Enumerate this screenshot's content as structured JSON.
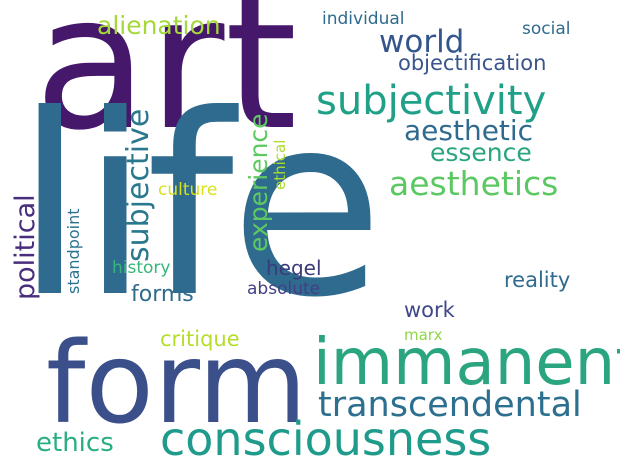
{
  "words": {
    "art": {
      "text": "art",
      "color": "#46186b"
    },
    "life": {
      "text": "life",
      "color": "#2f6b8e"
    },
    "form": {
      "text": "form",
      "color": "#3b4f8a"
    },
    "immanent": {
      "text": "immanent",
      "color": "#2aa57f"
    },
    "consciousness": {
      "text": "consciousness",
      "color": "#1e9b8a"
    },
    "transcendental": {
      "text": "transcendental",
      "color": "#2c6f8e"
    },
    "subjectivity": {
      "text": "subjectivity",
      "color": "#1fa087"
    },
    "aesthetics": {
      "text": "aesthetics",
      "color": "#5cc863"
    },
    "aesthetic": {
      "text": "aesthetic",
      "color": "#2f6b8e"
    },
    "essence": {
      "text": "essence",
      "color": "#2aa57f"
    },
    "world": {
      "text": "world",
      "color": "#34558b"
    },
    "objectification": {
      "text": "objectification",
      "color": "#39558c"
    },
    "alienation": {
      "text": "alienation",
      "color": "#a5d83a"
    },
    "individual": {
      "text": "individual",
      "color": "#2f6b8e"
    },
    "social": {
      "text": "social",
      "color": "#2f6b8e"
    },
    "subjective": {
      "text": "subjective",
      "color": "#2a788e"
    },
    "experience": {
      "text": "experience",
      "color": "#5ec962"
    },
    "ethical": {
      "text": "ethical",
      "color": "#addc30"
    },
    "political": {
      "text": "political",
      "color": "#472d7b"
    },
    "standpoint": {
      "text": "standpoint",
      "color": "#2c728e"
    },
    "culture": {
      "text": "culture",
      "color": "#d8e219"
    },
    "history": {
      "text": "history",
      "color": "#35b779"
    },
    "forms": {
      "text": "forms",
      "color": "#2f6b8e"
    },
    "hegel": {
      "text": "hegel",
      "color": "#3b3b7a"
    },
    "absolute": {
      "text": "absolute",
      "color": "#433e85"
    },
    "reality": {
      "text": "reality",
      "color": "#2f6b8e"
    },
    "work": {
      "text": "work",
      "color": "#3f4889"
    },
    "critique": {
      "text": "critique",
      "color": "#b5de2b"
    },
    "marx": {
      "text": "marx",
      "color": "#8fd744"
    },
    "ethics": {
      "text": "ethics",
      "color": "#29af7f"
    }
  }
}
